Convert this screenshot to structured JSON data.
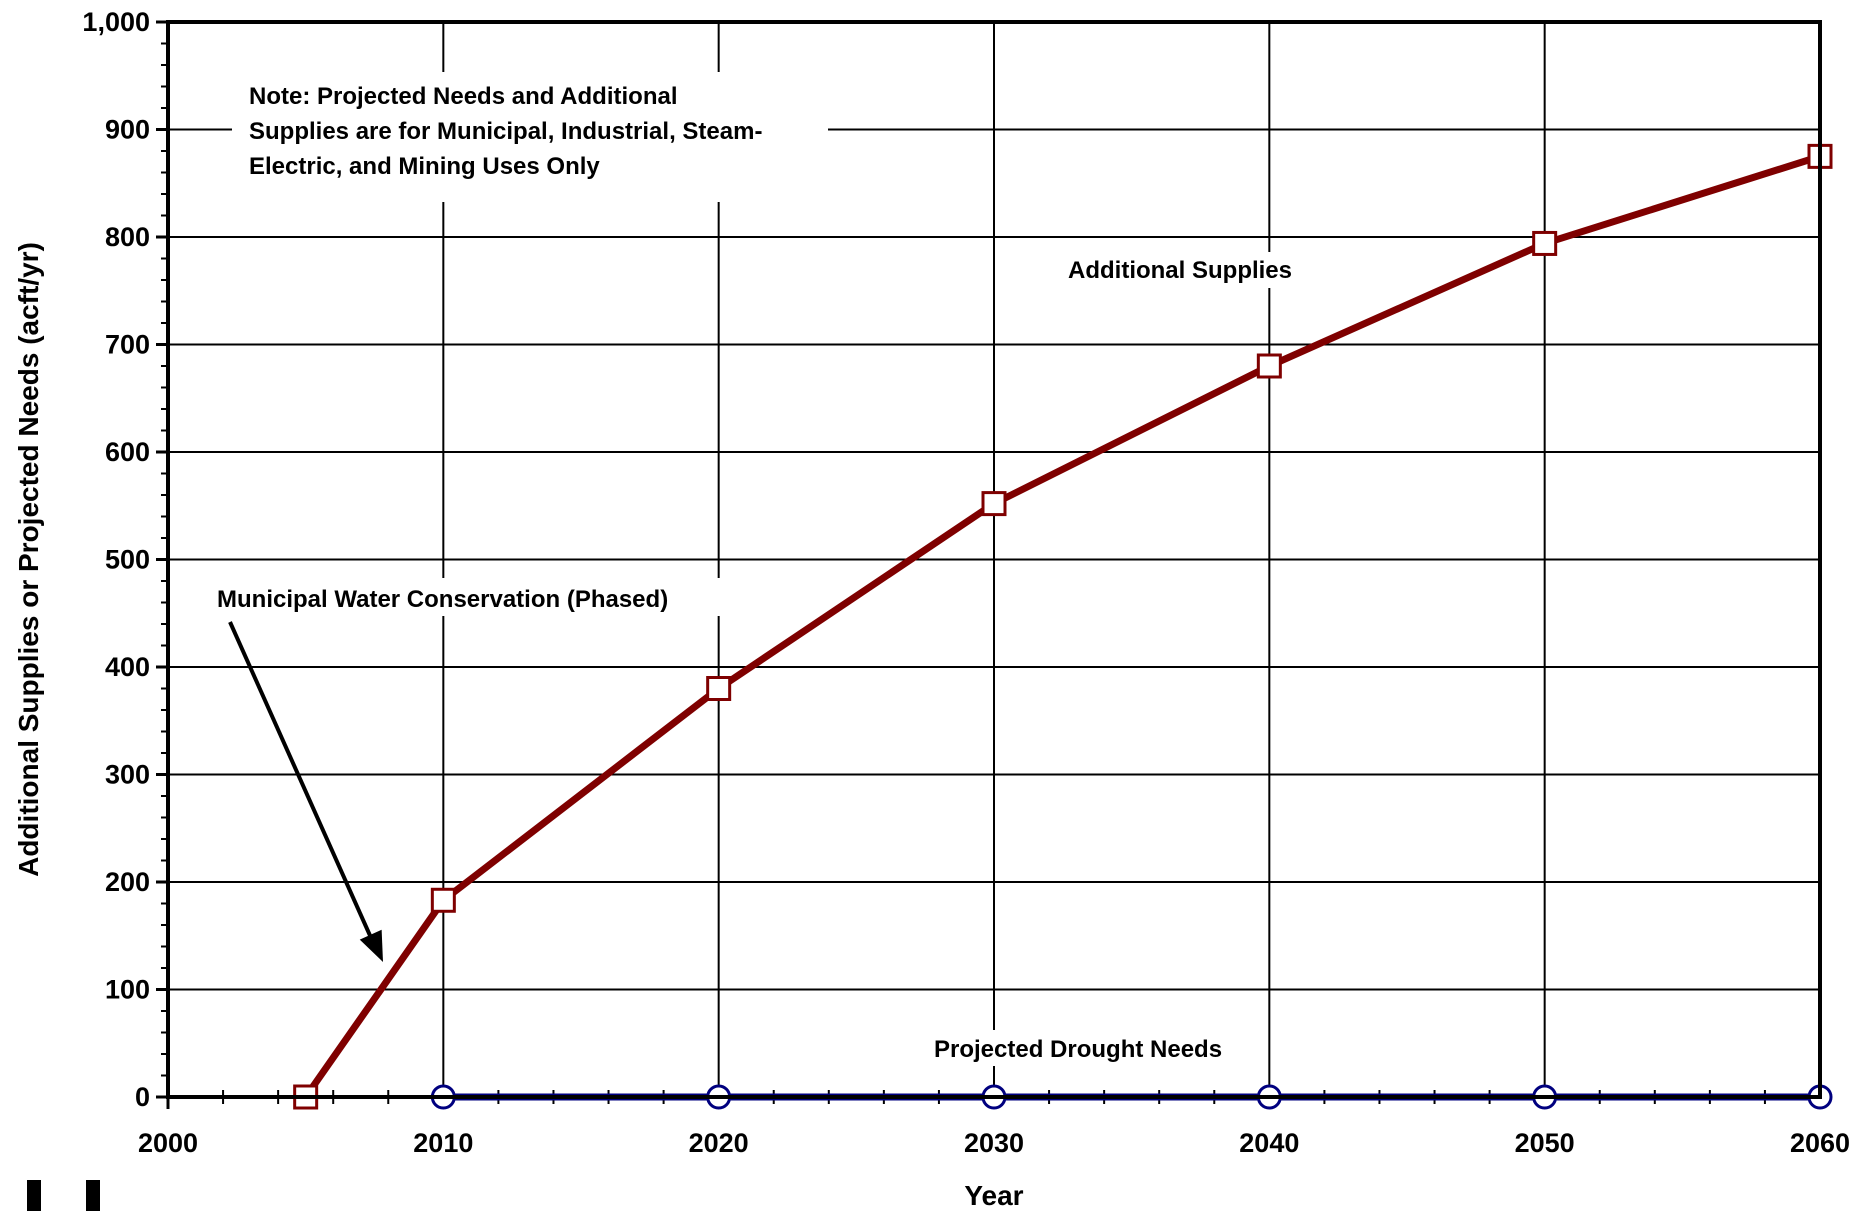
{
  "chart_data": {
    "type": "line",
    "title": "",
    "xlabel": "Year",
    "ylabel": "Additional Supplies or Projected Needs (acft/yr)",
    "xlim": [
      2000,
      2060
    ],
    "ylim": [
      0,
      1000
    ],
    "x_ticks": [
      2000,
      2010,
      2020,
      2030,
      2040,
      2050,
      2060
    ],
    "x_tick_labels": [
      "2000",
      "2010",
      "2020",
      "2030",
      "2040",
      "2050",
      "2060"
    ],
    "y_ticks": [
      0,
      100,
      200,
      300,
      400,
      500,
      600,
      700,
      800,
      900,
      1000
    ],
    "y_tick_labels": [
      "0",
      "100",
      "200",
      "300",
      "400",
      "500",
      "600",
      "700",
      "800",
      "900",
      "1,000"
    ],
    "grid": true,
    "series": [
      {
        "name": "Additional Supplies",
        "color": "#7f0000",
        "marker": "square",
        "x": [
          2005,
          2010,
          2020,
          2030,
          2040,
          2050,
          2060
        ],
        "y": [
          0,
          183,
          380,
          552,
          680,
          794,
          875
        ]
      },
      {
        "name": "Projected Drought Needs",
        "color": "#00007f",
        "marker": "circle",
        "x": [
          2010,
          2020,
          2030,
          2040,
          2050,
          2060
        ],
        "y": [
          0,
          0,
          0,
          0,
          0,
          0
        ]
      }
    ],
    "annotations": {
      "note_lines": [
        "Note:  Projected Needs and Additional",
        "Supplies are for Municipal, Industrial, Steam-",
        "Electric, and Mining Uses Only"
      ],
      "conservation_label": "Municipal Water Conservation (Phased)"
    }
  }
}
